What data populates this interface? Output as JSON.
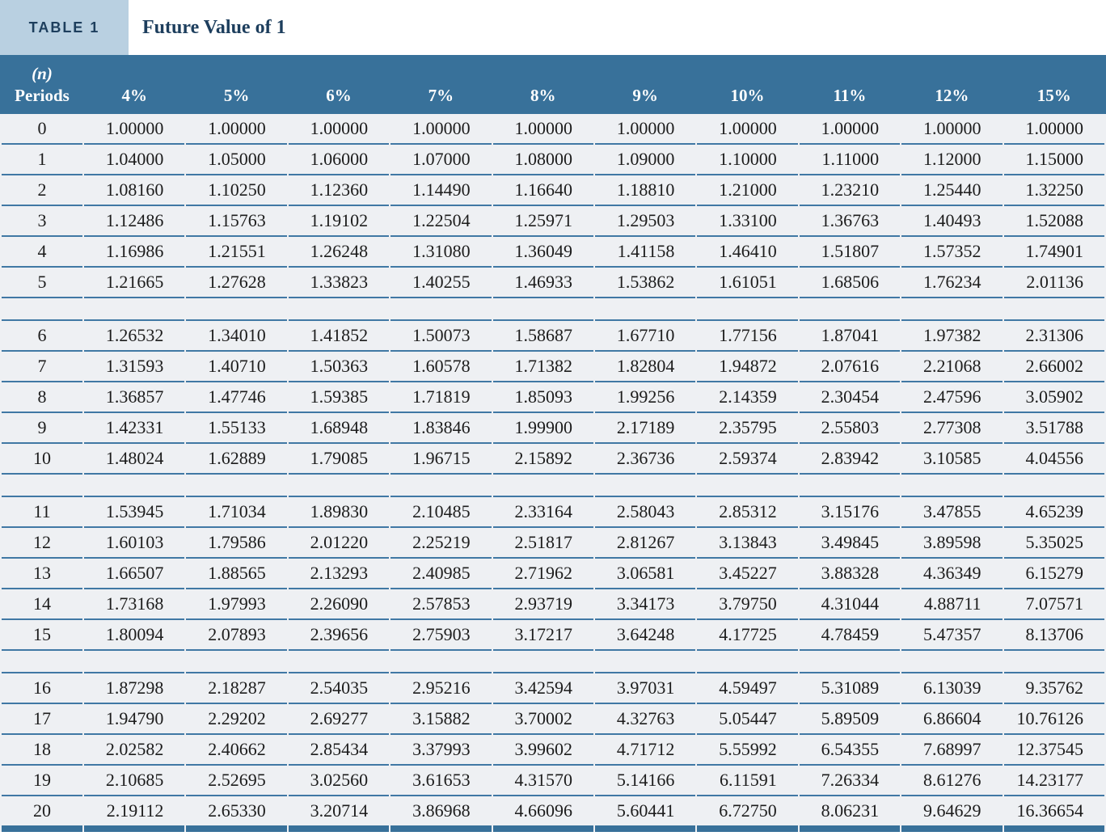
{
  "caption": {
    "tag": "TABLE 1",
    "title": "Future Value of 1"
  },
  "columns": {
    "period_line1": "(n)",
    "period_line2": "Periods",
    "rates": [
      "4%",
      "5%",
      "6%",
      "7%",
      "8%",
      "9%",
      "10%",
      "11%",
      "12%",
      "15%"
    ]
  },
  "rows": [
    {
      "period": "0",
      "values": [
        "1.00000",
        "1.00000",
        "1.00000",
        "1.00000",
        "1.00000",
        "1.00000",
        "1.00000",
        "1.00000",
        "1.00000",
        "1.00000"
      ]
    },
    {
      "period": "1",
      "values": [
        "1.04000",
        "1.05000",
        "1.06000",
        "1.07000",
        "1.08000",
        "1.09000",
        "1.10000",
        "1.11000",
        "1.12000",
        "1.15000"
      ]
    },
    {
      "period": "2",
      "values": [
        "1.08160",
        "1.10250",
        "1.12360",
        "1.14490",
        "1.16640",
        "1.18810",
        "1.21000",
        "1.23210",
        "1.25440",
        "1.32250"
      ]
    },
    {
      "period": "3",
      "values": [
        "1.12486",
        "1.15763",
        "1.19102",
        "1.22504",
        "1.25971",
        "1.29503",
        "1.33100",
        "1.36763",
        "1.40493",
        "1.52088"
      ]
    },
    {
      "period": "4",
      "values": [
        "1.16986",
        "1.21551",
        "1.26248",
        "1.31080",
        "1.36049",
        "1.41158",
        "1.46410",
        "1.51807",
        "1.57352",
        "1.74901"
      ]
    },
    {
      "period": "5",
      "values": [
        "1.21665",
        "1.27628",
        "1.33823",
        "1.40255",
        "1.46933",
        "1.53862",
        "1.61051",
        "1.68506",
        "1.76234",
        "2.01136"
      ]
    },
    {
      "period": "6",
      "values": [
        "1.26532",
        "1.34010",
        "1.41852",
        "1.50073",
        "1.58687",
        "1.67710",
        "1.77156",
        "1.87041",
        "1.97382",
        "2.31306"
      ]
    },
    {
      "period": "7",
      "values": [
        "1.31593",
        "1.40710",
        "1.50363",
        "1.60578",
        "1.71382",
        "1.82804",
        "1.94872",
        "2.07616",
        "2.21068",
        "2.66002"
      ]
    },
    {
      "period": "8",
      "values": [
        "1.36857",
        "1.47746",
        "1.59385",
        "1.71819",
        "1.85093",
        "1.99256",
        "2.14359",
        "2.30454",
        "2.47596",
        "3.05902"
      ]
    },
    {
      "period": "9",
      "values": [
        "1.42331",
        "1.55133",
        "1.68948",
        "1.83846",
        "1.99900",
        "2.17189",
        "2.35795",
        "2.55803",
        "2.77308",
        "3.51788"
      ]
    },
    {
      "period": "10",
      "values": [
        "1.48024",
        "1.62889",
        "1.79085",
        "1.96715",
        "2.15892",
        "2.36736",
        "2.59374",
        "2.83942",
        "3.10585",
        "4.04556"
      ]
    },
    {
      "period": "11",
      "values": [
        "1.53945",
        "1.71034",
        "1.89830",
        "2.10485",
        "2.33164",
        "2.58043",
        "2.85312",
        "3.15176",
        "3.47855",
        "4.65239"
      ]
    },
    {
      "period": "12",
      "values": [
        "1.60103",
        "1.79586",
        "2.01220",
        "2.25219",
        "2.51817",
        "2.81267",
        "3.13843",
        "3.49845",
        "3.89598",
        "5.35025"
      ]
    },
    {
      "period": "13",
      "values": [
        "1.66507",
        "1.88565",
        "2.13293",
        "2.40985",
        "2.71962",
        "3.06581",
        "3.45227",
        "3.88328",
        "4.36349",
        "6.15279"
      ]
    },
    {
      "period": "14",
      "values": [
        "1.73168",
        "1.97993",
        "2.26090",
        "2.57853",
        "2.93719",
        "3.34173",
        "3.79750",
        "4.31044",
        "4.88711",
        "7.07571"
      ]
    },
    {
      "period": "15",
      "values": [
        "1.80094",
        "2.07893",
        "2.39656",
        "2.75903",
        "3.17217",
        "3.64248",
        "4.17725",
        "4.78459",
        "5.47357",
        "8.13706"
      ]
    },
    {
      "period": "16",
      "values": [
        "1.87298",
        "2.18287",
        "2.54035",
        "2.95216",
        "3.42594",
        "3.97031",
        "4.59497",
        "5.31089",
        "6.13039",
        "9.35762"
      ]
    },
    {
      "period": "17",
      "values": [
        "1.94790",
        "2.29202",
        "2.69277",
        "3.15882",
        "3.70002",
        "4.32763",
        "5.05447",
        "5.89509",
        "6.86604",
        "10.76126"
      ]
    },
    {
      "period": "18",
      "values": [
        "2.02582",
        "2.40662",
        "2.85434",
        "3.37993",
        "3.99602",
        "4.71712",
        "5.55992",
        "6.54355",
        "7.68997",
        "12.37545"
      ]
    },
    {
      "period": "19",
      "values": [
        "2.10685",
        "2.52695",
        "3.02560",
        "3.61653",
        "4.31570",
        "5.14166",
        "6.11591",
        "7.26334",
        "8.61276",
        "14.23177"
      ]
    },
    {
      "period": "20",
      "values": [
        "2.19112",
        "2.65330",
        "3.20714",
        "3.86968",
        "4.66096",
        "5.60441",
        "6.72750",
        "8.06231",
        "9.64629",
        "16.36654"
      ]
    }
  ],
  "layout": {
    "spacer_after_periods": [
      "5",
      "10",
      "15"
    ]
  },
  "colors": {
    "header_band": "#38719a",
    "row_rule": "#4078a4",
    "row_background": "#eef0f3",
    "caption_tag_background": "#b9d0e1",
    "caption_text": "#1d3e5d",
    "bottom_bar": "#38719a"
  }
}
